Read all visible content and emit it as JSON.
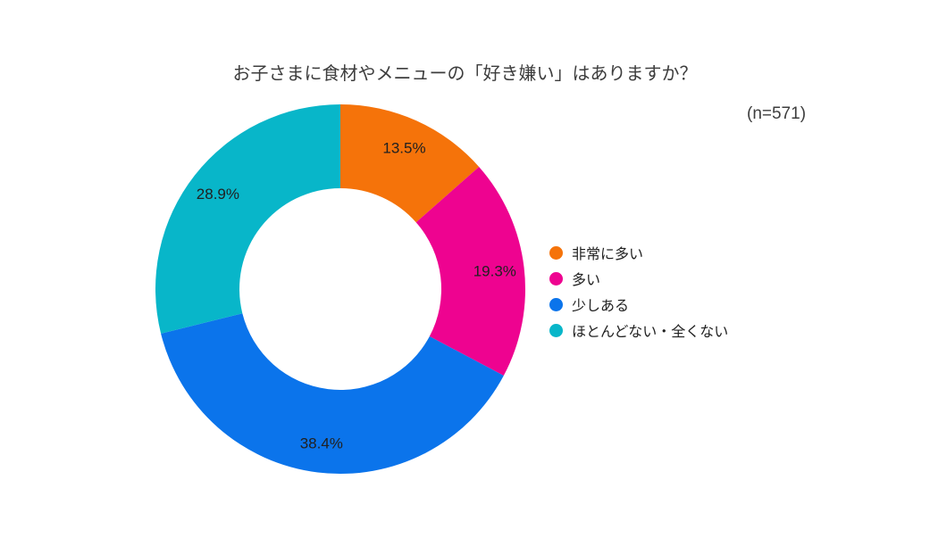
{
  "chart_data": {
    "type": "pie",
    "subtype": "donut",
    "title": "お子さまに食材やメニューの「好き嫌い」はありますか？",
    "sample_note": "(n=571)",
    "categories": [
      "非常に多い",
      "多い",
      "少しある",
      "ほとんどない・全くない"
    ],
    "values": [
      13.5,
      19.3,
      38.4,
      28.9
    ],
    "point_labels": [
      "13.5%",
      "19.3%",
      "38.4%",
      "28.9%"
    ],
    "colors": [
      "#f5730a",
      "#ee0390",
      "#0b74eb",
      "#08b6c9"
    ],
    "unit": "%",
    "start_angle_deg": 0,
    "direction": "clockwise",
    "inner_radius_ratio": 0.546,
    "legend_position": "right",
    "background": "#ffffff",
    "label_color": "#212121",
    "title_color": "#3d3d3d"
  }
}
